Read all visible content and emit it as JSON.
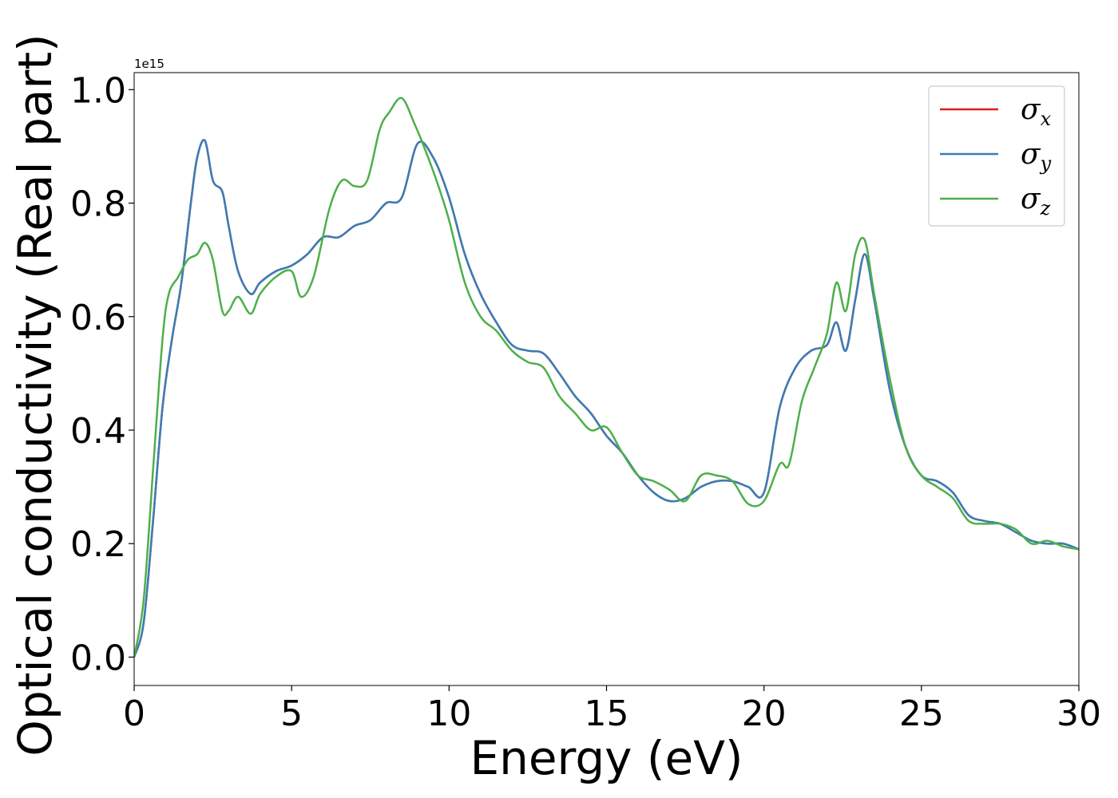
{
  "chart_data": {
    "type": "line",
    "title": "",
    "xlabel": "Energy (eV)",
    "ylabel": "Optical conductivity (Real part)",
    "y_offset_text": "1e15",
    "y_scale_factor": 1000000000000000.0,
    "xlim": [
      0,
      30
    ],
    "ylim": [
      -0.05,
      1.03
    ],
    "x_ticks": [
      0,
      5,
      10,
      15,
      20,
      25,
      30
    ],
    "x_tick_labels": [
      "0",
      "5",
      "10",
      "15",
      "20",
      "25",
      "30"
    ],
    "y_ticks": [
      0.0,
      0.2,
      0.4,
      0.6,
      0.8,
      1.0
    ],
    "y_tick_labels": [
      "0.0",
      "0.2",
      "0.4",
      "0.6",
      "0.8",
      "1.0"
    ],
    "grid": false,
    "legend_placement": "top-right",
    "series": [
      {
        "name": "σx",
        "symbol": "σ",
        "subscript": "x",
        "color": "#e41a1c",
        "x": [
          0,
          0.3,
          0.6,
          0.9,
          1.2,
          1.5,
          1.8,
          2.0,
          2.25,
          2.5,
          2.8,
          3.0,
          3.3,
          3.7,
          4.0,
          4.5,
          5.0,
          5.5,
          6.0,
          6.5,
          7.0,
          7.5,
          8.0,
          8.5,
          9.0,
          9.5,
          10.0,
          10.5,
          11.0,
          11.5,
          12.0,
          12.5,
          13.0,
          13.5,
          14.0,
          14.5,
          15.0,
          15.5,
          16.0,
          16.5,
          17.0,
          17.5,
          18.0,
          18.5,
          19.0,
          19.5,
          20.0,
          20.5,
          21.0,
          21.5,
          22.0,
          22.3,
          22.6,
          22.9,
          23.2,
          23.5,
          24.0,
          24.5,
          25.0,
          25.5,
          26.0,
          26.5,
          27.0,
          27.5,
          28.0,
          28.5,
          29.0,
          29.5,
          30.0
        ],
        "y": [
          0.0,
          0.06,
          0.24,
          0.44,
          0.56,
          0.66,
          0.8,
          0.88,
          0.91,
          0.84,
          0.82,
          0.76,
          0.68,
          0.64,
          0.66,
          0.68,
          0.69,
          0.71,
          0.74,
          0.74,
          0.76,
          0.77,
          0.8,
          0.81,
          0.905,
          0.88,
          0.81,
          0.71,
          0.64,
          0.59,
          0.55,
          0.54,
          0.535,
          0.5,
          0.46,
          0.43,
          0.39,
          0.36,
          0.32,
          0.29,
          0.275,
          0.28,
          0.3,
          0.31,
          0.31,
          0.3,
          0.29,
          0.44,
          0.51,
          0.54,
          0.55,
          0.59,
          0.54,
          0.63,
          0.71,
          0.63,
          0.47,
          0.37,
          0.32,
          0.31,
          0.29,
          0.25,
          0.24,
          0.235,
          0.22,
          0.205,
          0.2,
          0.2,
          0.19
        ]
      },
      {
        "name": "σy",
        "symbol": "σ",
        "subscript": "y",
        "color": "#377eb8",
        "x": [
          0,
          0.3,
          0.6,
          0.9,
          1.2,
          1.5,
          1.8,
          2.0,
          2.25,
          2.5,
          2.8,
          3.0,
          3.3,
          3.7,
          4.0,
          4.5,
          5.0,
          5.5,
          6.0,
          6.5,
          7.0,
          7.5,
          8.0,
          8.5,
          9.0,
          9.5,
          10.0,
          10.5,
          11.0,
          11.5,
          12.0,
          12.5,
          13.0,
          13.5,
          14.0,
          14.5,
          15.0,
          15.5,
          16.0,
          16.5,
          17.0,
          17.5,
          18.0,
          18.5,
          19.0,
          19.5,
          20.0,
          20.5,
          21.0,
          21.5,
          22.0,
          22.3,
          22.6,
          22.9,
          23.2,
          23.5,
          24.0,
          24.5,
          25.0,
          25.5,
          26.0,
          26.5,
          27.0,
          27.5,
          28.0,
          28.5,
          29.0,
          29.5,
          30.0
        ],
        "y": [
          0.0,
          0.06,
          0.24,
          0.44,
          0.56,
          0.66,
          0.8,
          0.88,
          0.91,
          0.84,
          0.82,
          0.76,
          0.68,
          0.64,
          0.66,
          0.68,
          0.69,
          0.71,
          0.74,
          0.74,
          0.76,
          0.77,
          0.8,
          0.81,
          0.905,
          0.88,
          0.81,
          0.71,
          0.64,
          0.59,
          0.55,
          0.54,
          0.535,
          0.5,
          0.46,
          0.43,
          0.39,
          0.36,
          0.32,
          0.29,
          0.275,
          0.28,
          0.3,
          0.31,
          0.31,
          0.3,
          0.29,
          0.44,
          0.51,
          0.54,
          0.55,
          0.59,
          0.54,
          0.63,
          0.71,
          0.63,
          0.47,
          0.37,
          0.32,
          0.31,
          0.29,
          0.25,
          0.24,
          0.235,
          0.22,
          0.205,
          0.2,
          0.2,
          0.19
        ]
      },
      {
        "name": "σz",
        "symbol": "σ",
        "subscript": "z",
        "color": "#4daf4a",
        "x": [
          0,
          0.3,
          0.6,
          0.9,
          1.1,
          1.4,
          1.7,
          2.0,
          2.25,
          2.5,
          2.8,
          3.0,
          3.3,
          3.7,
          4.0,
          4.5,
          5.0,
          5.3,
          5.7,
          6.2,
          6.6,
          7.0,
          7.4,
          7.8,
          8.1,
          8.5,
          8.9,
          9.2,
          9.6,
          10.0,
          10.5,
          11.0,
          11.5,
          12.0,
          12.5,
          13.0,
          13.5,
          14.0,
          14.5,
          15.0,
          15.5,
          16.0,
          16.5,
          17.0,
          17.5,
          18.0,
          18.5,
          19.0,
          19.5,
          20.0,
          20.5,
          20.8,
          21.2,
          21.6,
          22.0,
          22.3,
          22.6,
          22.9,
          23.2,
          23.5,
          24.0,
          24.5,
          25.0,
          25.5,
          26.0,
          26.5,
          27.0,
          27.5,
          28.0,
          28.5,
          29.0,
          29.5,
          30.0
        ],
        "y": [
          0.0,
          0.1,
          0.33,
          0.56,
          0.64,
          0.67,
          0.7,
          0.71,
          0.73,
          0.7,
          0.61,
          0.61,
          0.635,
          0.605,
          0.64,
          0.67,
          0.68,
          0.635,
          0.67,
          0.79,
          0.84,
          0.83,
          0.84,
          0.93,
          0.96,
          0.985,
          0.94,
          0.9,
          0.84,
          0.77,
          0.66,
          0.6,
          0.575,
          0.54,
          0.52,
          0.51,
          0.46,
          0.43,
          0.4,
          0.405,
          0.36,
          0.32,
          0.31,
          0.295,
          0.275,
          0.32,
          0.32,
          0.31,
          0.27,
          0.275,
          0.34,
          0.34,
          0.45,
          0.51,
          0.57,
          0.66,
          0.61,
          0.71,
          0.735,
          0.64,
          0.49,
          0.37,
          0.32,
          0.3,
          0.28,
          0.24,
          0.235,
          0.235,
          0.225,
          0.2,
          0.205,
          0.195,
          0.19
        ]
      }
    ]
  }
}
